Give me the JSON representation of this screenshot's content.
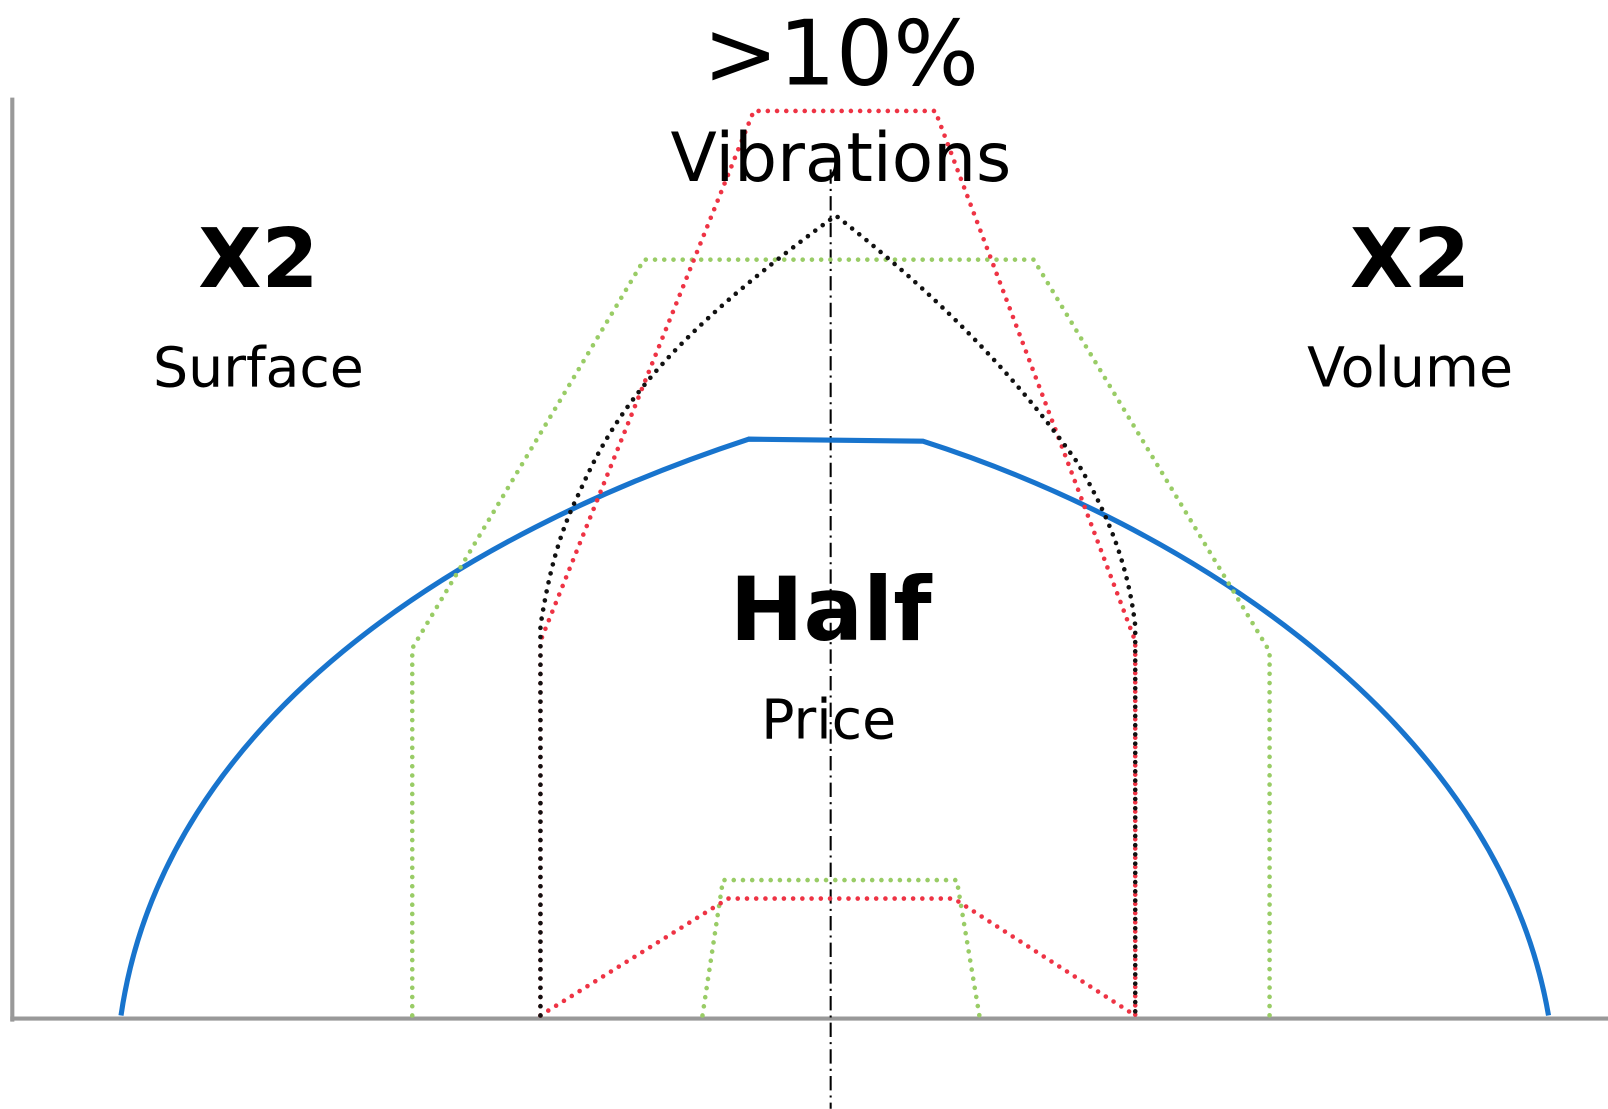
{
  "top": {
    "value": ">10%",
    "caption": "Vibrations"
  },
  "left": {
    "value": "X2",
    "caption": "Surface"
  },
  "right": {
    "value": "X2",
    "caption": "Volume"
  },
  "center": {
    "value": "Half",
    "caption": "Price"
  }
}
